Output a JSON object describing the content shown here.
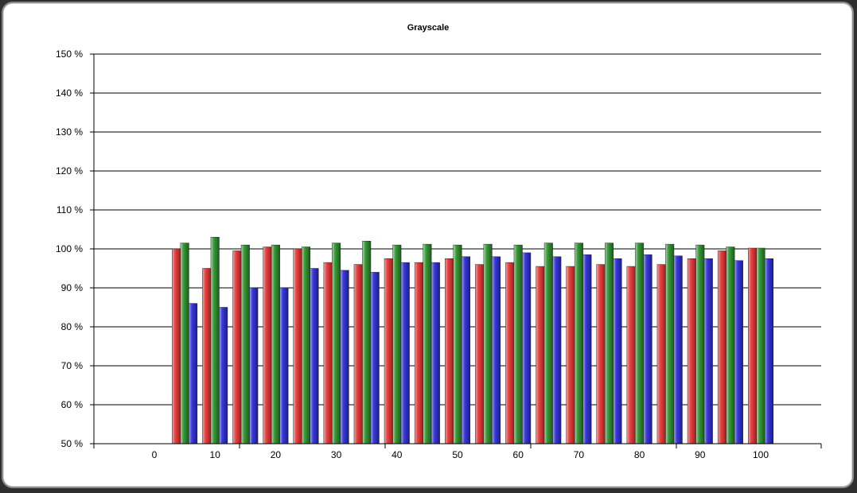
{
  "chart_data": {
    "type": "bar",
    "title": "Grayscale",
    "xlabel": "",
    "ylabel": "",
    "ylim": [
      50,
      150
    ],
    "ytick_step": 10,
    "ytick_labels": [
      "50 %",
      "60 %",
      "70 %",
      "80 %",
      "90 %",
      "100 %",
      "110 %",
      "120 %",
      "130 %",
      "140 %",
      "150 %"
    ],
    "x_tick_labels": [
      "0",
      "10",
      "20",
      "30",
      "40",
      "50",
      "60",
      "70",
      "80",
      "90",
      "100"
    ],
    "categories": [
      "0",
      "5",
      "10",
      "15",
      "20",
      "25",
      "30",
      "35",
      "40",
      "45",
      "50",
      "55",
      "60",
      "65",
      "70",
      "75",
      "80",
      "85",
      "90",
      "95",
      "100"
    ],
    "grid": true,
    "legend": "none",
    "series": [
      {
        "color": "#e8403f",
        "values": [
          null,
          100,
          95,
          99.5,
          100.5,
          100,
          96.5,
          96,
          97.5,
          96.5,
          97.5,
          96,
          96.5,
          95.5,
          95.5,
          96,
          95.5,
          96,
          97.5,
          99.5,
          100.2
        ]
      },
      {
        "color": "#3a9a3a",
        "values": [
          null,
          101.5,
          103,
          101,
          101,
          100.5,
          101.5,
          102,
          101,
          101.2,
          101,
          101.2,
          101,
          101.5,
          101.5,
          101.5,
          101.5,
          101.2,
          101,
          100.5,
          100.2
        ]
      },
      {
        "color": "#3a3adc",
        "values": [
          null,
          86,
          85,
          90,
          90,
          95,
          94.5,
          94,
          96.5,
          96.5,
          98,
          98,
          99,
          98,
          98.5,
          97.5,
          98.5,
          98.2,
          97.5,
          97,
          97.5
        ]
      }
    ]
  }
}
